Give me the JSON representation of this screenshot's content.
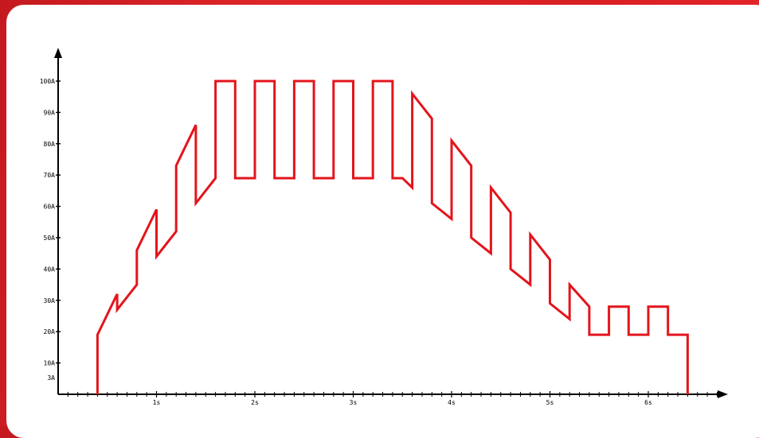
{
  "chart_data": {
    "type": "line",
    "title": "",
    "xlabel": "",
    "ylabel": "",
    "x_unit": "s",
    "y_unit": "A",
    "xlim": [
      0,
      6.8
    ],
    "ylim": [
      0,
      100
    ],
    "x_ticks": [
      {
        "value": 1,
        "label": "1s"
      },
      {
        "value": 2,
        "label": "2s"
      },
      {
        "value": 3,
        "label": "3s"
      },
      {
        "value": 4,
        "label": "4s"
      },
      {
        "value": 5,
        "label": "5s"
      },
      {
        "value": 6,
        "label": "6s"
      }
    ],
    "y_ticks": [
      {
        "value": 3,
        "label": "3A"
      },
      {
        "value": 10,
        "label": "10A"
      },
      {
        "value": 20,
        "label": "20A"
      },
      {
        "value": 30,
        "label": "30A"
      },
      {
        "value": 40,
        "label": "40A"
      },
      {
        "value": 50,
        "label": "50A"
      },
      {
        "value": 60,
        "label": "60A"
      },
      {
        "value": 70,
        "label": "70A"
      },
      {
        "value": 80,
        "label": "80A"
      },
      {
        "value": 90,
        "label": "90A"
      },
      {
        "value": 100,
        "label": "100A"
      }
    ],
    "grid": false,
    "line_color": "#e3151c",
    "series": [
      {
        "name": "",
        "points": [
          [
            0.4,
            0
          ],
          [
            0.4,
            19
          ],
          [
            0.6,
            32
          ],
          [
            0.6,
            27
          ],
          [
            0.8,
            35
          ],
          [
            0.8,
            46
          ],
          [
            1.0,
            59
          ],
          [
            1.0,
            44
          ],
          [
            1.2,
            52
          ],
          [
            1.2,
            73
          ],
          [
            1.4,
            86
          ],
          [
            1.4,
            61
          ],
          [
            1.6,
            69
          ],
          [
            1.6,
            100
          ],
          [
            1.8,
            100
          ],
          [
            1.8,
            69
          ],
          [
            2.0,
            69
          ],
          [
            2.0,
            100
          ],
          [
            2.2,
            100
          ],
          [
            2.2,
            69
          ],
          [
            2.4,
            69
          ],
          [
            2.4,
            100
          ],
          [
            2.6,
            100
          ],
          [
            2.6,
            69
          ],
          [
            2.8,
            69
          ],
          [
            2.8,
            100
          ],
          [
            3.0,
            100
          ],
          [
            3.0,
            69
          ],
          [
            3.2,
            69
          ],
          [
            3.2,
            100
          ],
          [
            3.4,
            100
          ],
          [
            3.4,
            69
          ],
          [
            3.5,
            69
          ],
          [
            3.6,
            66
          ],
          [
            3.6,
            96
          ],
          [
            3.8,
            88
          ],
          [
            3.8,
            61
          ],
          [
            4.0,
            56
          ],
          [
            4.0,
            81
          ],
          [
            4.2,
            73
          ],
          [
            4.2,
            50
          ],
          [
            4.4,
            45
          ],
          [
            4.4,
            66
          ],
          [
            4.6,
            58
          ],
          [
            4.6,
            40
          ],
          [
            4.8,
            35
          ],
          [
            4.8,
            51
          ],
          [
            5.0,
            43
          ],
          [
            5.0,
            29
          ],
          [
            5.2,
            24
          ],
          [
            5.2,
            35
          ],
          [
            5.4,
            28
          ],
          [
            5.4,
            19
          ],
          [
            5.6,
            19
          ],
          [
            5.6,
            28
          ],
          [
            5.8,
            28
          ],
          [
            5.8,
            19
          ],
          [
            6.0,
            19
          ],
          [
            6.0,
            28
          ],
          [
            6.2,
            28
          ],
          [
            6.2,
            19
          ],
          [
            6.4,
            19
          ],
          [
            6.4,
            0
          ]
        ]
      }
    ]
  }
}
